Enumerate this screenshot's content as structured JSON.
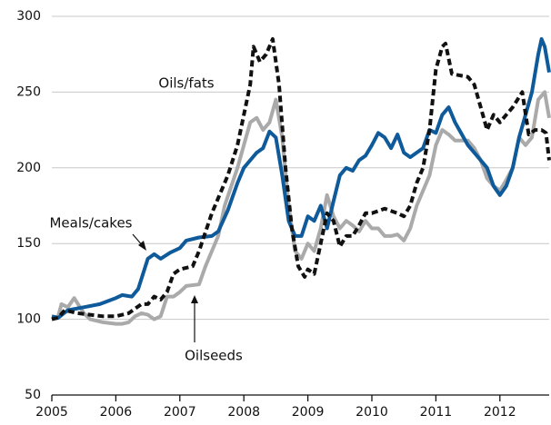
{
  "chart_data": {
    "type": "line",
    "xlim": [
      2005,
      2012.77
    ],
    "xticks": [
      2005,
      2006,
      2007,
      2008,
      2009,
      2010,
      2011,
      2012
    ],
    "ylim": [
      50,
      300
    ],
    "yticks": [
      50,
      100,
      150,
      200,
      250,
      300
    ],
    "grid": true,
    "annotations": [
      {
        "text": "Oils/fats",
        "series": 1
      },
      {
        "text": "Meals/cakes",
        "series": 0
      },
      {
        "text": "Oilseeds",
        "series": 2
      }
    ],
    "series": [
      {
        "name": "Meals/cakes",
        "color": "#0e5a9a",
        "dash": false,
        "x": [
          2005.0,
          2005.1,
          2005.25,
          2005.5,
          2005.75,
          2006.0,
          2006.1,
          2006.25,
          2006.35,
          2006.5,
          2006.6,
          2006.7,
          2006.85,
          2007.0,
          2007.1,
          2007.3,
          2007.5,
          2007.6,
          2007.75,
          2007.9,
          2008.0,
          2008.1,
          2008.2,
          2008.3,
          2008.4,
          2008.5,
          2008.6,
          2008.7,
          2008.8,
          2008.9,
          2009.0,
          2009.1,
          2009.2,
          2009.3,
          2009.4,
          2009.5,
          2009.6,
          2009.7,
          2009.8,
          2009.9,
          2010.0,
          2010.1,
          2010.2,
          2010.3,
          2010.4,
          2010.5,
          2010.6,
          2010.8,
          2010.9,
          2011.0,
          2011.1,
          2011.2,
          2011.3,
          2011.5,
          2011.6,
          2011.8,
          2011.9,
          2012.0,
          2012.1,
          2012.2,
          2012.3,
          2012.4,
          2012.5,
          2012.6,
          2012.65,
          2012.7,
          2012.77
        ],
        "values": [
          102,
          101,
          106,
          108,
          110,
          114,
          116,
          115,
          120,
          140,
          143,
          140,
          144,
          147,
          152,
          154,
          155,
          158,
          172,
          190,
          200,
          205,
          210,
          213,
          224,
          220,
          195,
          165,
          155,
          155,
          168,
          165,
          175,
          160,
          178,
          195,
          200,
          198,
          205,
          208,
          215,
          223,
          220,
          213,
          222,
          210,
          207,
          213,
          225,
          223,
          235,
          240,
          230,
          215,
          210,
          200,
          188,
          182,
          188,
          200,
          220,
          235,
          250,
          275,
          285,
          280,
          263
        ]
      },
      {
        "name": "Oils/fats",
        "color": "#111111",
        "dash": true,
        "x": [
          2005.0,
          2005.1,
          2005.2,
          2005.4,
          2005.6,
          2005.8,
          2006.0,
          2006.2,
          2006.4,
          2006.5,
          2006.6,
          2006.7,
          2006.8,
          2006.9,
          2007.0,
          2007.2,
          2007.3,
          2007.5,
          2007.6,
          2007.75,
          2007.9,
          2008.0,
          2008.1,
          2008.15,
          2008.25,
          2008.35,
          2008.45,
          2008.55,
          2008.65,
          2008.75,
          2008.85,
          2008.95,
          2009.0,
          2009.1,
          2009.2,
          2009.3,
          2009.4,
          2009.5,
          2009.6,
          2009.7,
          2009.8,
          2009.9,
          2010.0,
          2010.2,
          2010.4,
          2010.5,
          2010.6,
          2010.7,
          2010.8,
          2010.9,
          2011.0,
          2011.1,
          2011.15,
          2011.25,
          2011.5,
          2011.6,
          2011.7,
          2011.8,
          2011.9,
          2012.0,
          2012.1,
          2012.2,
          2012.35,
          2012.45,
          2012.55,
          2012.65,
          2012.72,
          2012.77
        ],
        "values": [
          100,
          101,
          106,
          104,
          103,
          102,
          102,
          104,
          110,
          110,
          115,
          113,
          118,
          130,
          133,
          135,
          145,
          170,
          180,
          195,
          215,
          235,
          255,
          280,
          270,
          275,
          285,
          255,
          200,
          160,
          135,
          128,
          133,
          130,
          150,
          170,
          165,
          148,
          155,
          155,
          162,
          170,
          170,
          173,
          170,
          168,
          175,
          190,
          200,
          225,
          265,
          280,
          282,
          262,
          260,
          255,
          240,
          225,
          235,
          230,
          235,
          240,
          250,
          222,
          225,
          225,
          223,
          205
        ]
      },
      {
        "name": "Oilseeds",
        "color": "#aaaaaa",
        "dash": false,
        "x": [
          2005.0,
          2005.1,
          2005.15,
          2005.25,
          2005.35,
          2005.5,
          2005.6,
          2005.8,
          2006.0,
          2006.1,
          2006.2,
          2006.3,
          2006.4,
          2006.5,
          2006.6,
          2006.7,
          2006.8,
          2006.9,
          2007.0,
          2007.1,
          2007.3,
          2007.4,
          2007.6,
          2007.7,
          2007.9,
          2008.0,
          2008.1,
          2008.2,
          2008.3,
          2008.4,
          2008.5,
          2008.6,
          2008.7,
          2008.8,
          2008.9,
          2009.0,
          2009.1,
          2009.2,
          2009.3,
          2009.4,
          2009.5,
          2009.6,
          2009.7,
          2009.8,
          2009.9,
          2010.0,
          2010.1,
          2010.2,
          2010.3,
          2010.4,
          2010.5,
          2010.6,
          2010.7,
          2010.9,
          2011.0,
          2011.1,
          2011.2,
          2011.3,
          2011.5,
          2011.6,
          2011.7,
          2011.8,
          2011.9,
          2012.0,
          2012.1,
          2012.2,
          2012.3,
          2012.4,
          2012.5,
          2012.6,
          2012.7,
          2012.77
        ],
        "values": [
          100,
          102,
          110,
          108,
          114,
          104,
          100,
          98,
          97,
          97,
          98,
          102,
          104,
          103,
          100,
          102,
          115,
          115,
          118,
          122,
          123,
          135,
          155,
          175,
          200,
          215,
          230,
          233,
          225,
          230,
          245,
          220,
          175,
          145,
          140,
          150,
          145,
          160,
          182,
          168,
          160,
          165,
          162,
          158,
          165,
          160,
          160,
          155,
          155,
          156,
          152,
          160,
          175,
          195,
          215,
          225,
          222,
          218,
          218,
          213,
          205,
          193,
          188,
          185,
          192,
          200,
          220,
          215,
          220,
          245,
          250,
          233
        ]
      }
    ]
  }
}
